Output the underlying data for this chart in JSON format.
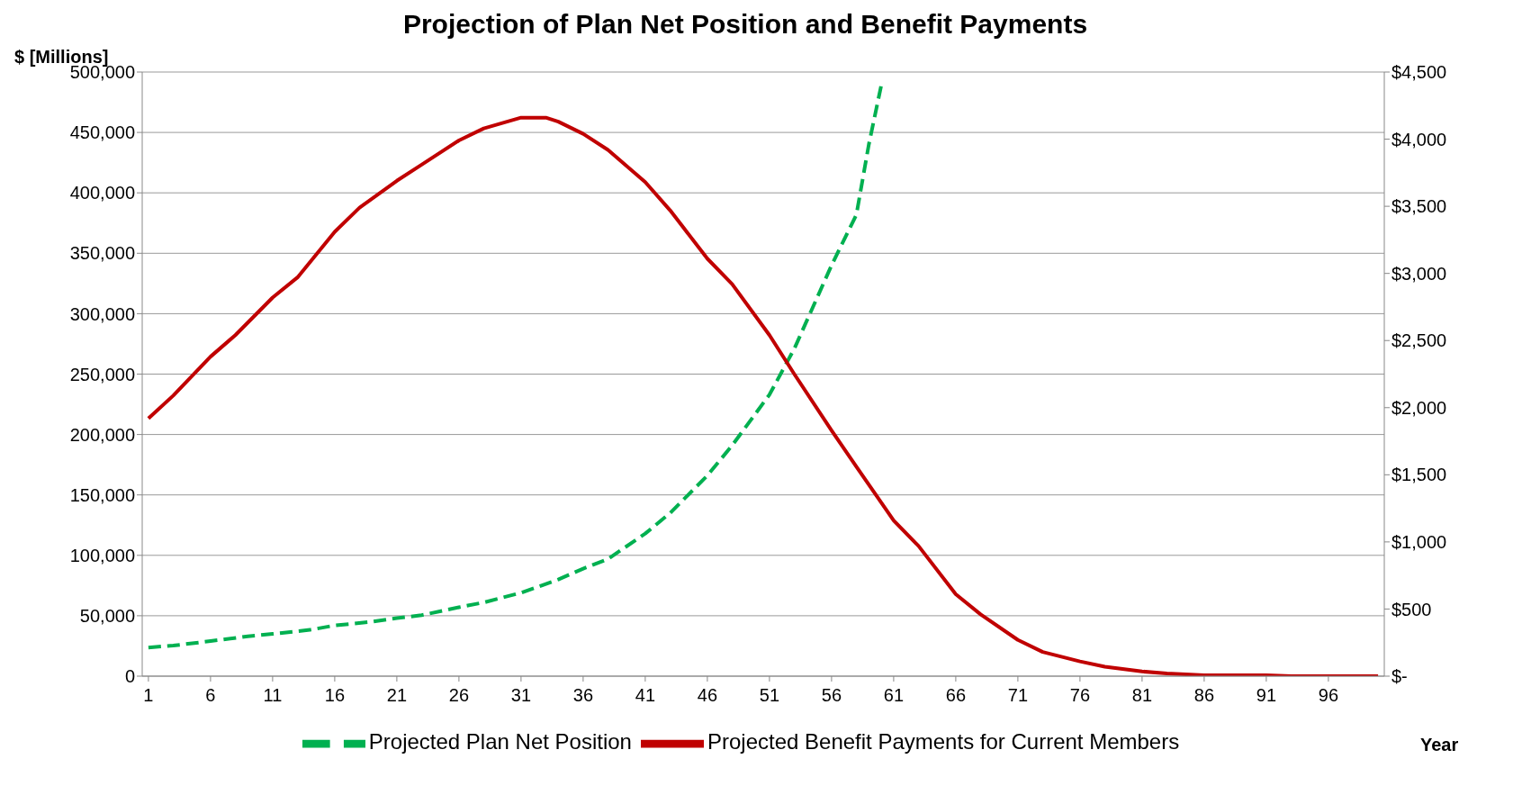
{
  "chart_data": {
    "type": "line",
    "title": "Projection of Plan Net Position and Benefit Payments",
    "ylabel": "$ [Millions]",
    "xlabel": "Year",
    "xlim": [
      0.5,
      100.5
    ],
    "xticks": [
      1,
      6,
      11,
      16,
      21,
      26,
      31,
      36,
      41,
      46,
      51,
      56,
      61,
      66,
      71,
      76,
      81,
      86,
      91,
      96
    ],
    "ylim": [
      0,
      500000
    ],
    "yticks": [
      0,
      {
        "value": 50000,
        "label": "50,000"
      },
      {
        "value": 100000,
        "label": "100,000"
      },
      {
        "value": 150000,
        "label": "150,000"
      },
      {
        "value": 200000,
        "label": "200,000"
      },
      {
        "value": 250000,
        "label": "250,000"
      },
      {
        "value": 300000,
        "label": "300,000"
      },
      {
        "value": 350000,
        "label": "350,000"
      },
      {
        "value": 400000,
        "label": "400,000"
      },
      {
        "value": 450000,
        "label": "450,000"
      },
      {
        "value": 500000,
        "label": "500,000"
      }
    ],
    "y2lim": [
      0,
      4500
    ],
    "y2ticks": [
      {
        "value": 0,
        "label": "$-"
      },
      {
        "value": 500,
        "label": "$500"
      },
      {
        "value": 1000,
        "label": "$1,000"
      },
      {
        "value": 1500,
        "label": "$1,500"
      },
      {
        "value": 2000,
        "label": "$2,000"
      },
      {
        "value": 2500,
        "label": "$2,500"
      },
      {
        "value": 3000,
        "label": "$3,000"
      },
      {
        "value": 3500,
        "label": "$3,500"
      },
      {
        "value": 4000,
        "label": "$4,000"
      },
      {
        "value": 4500,
        "label": "$4,500"
      }
    ],
    "grid": "y",
    "legend": "bottom",
    "marker": "none",
    "series": [
      {
        "name": "Projected Plan Net Position",
        "color": "#00b050",
        "line_style": "dashed",
        "x": [
          1,
          3,
          6,
          9,
          11,
          14,
          16,
          19,
          21,
          23,
          26,
          28,
          31,
          34,
          36,
          38,
          41,
          43,
          46,
          48,
          51,
          53,
          56,
          58,
          59,
          60
        ],
        "values": [
          23700,
          25300,
          29000,
          33000,
          35000,
          38300,
          42000,
          45000,
          48000,
          50500,
          57000,
          61000,
          69000,
          80000,
          89000,
          97000,
          118000,
          135000,
          166000,
          191000,
          233000,
          271000,
          340000,
          382000,
          440000,
          489000
        ]
      },
      {
        "name": "Projected Benefit Payments for Current Members",
        "color": "#c00000",
        "line_style": "solid",
        "axis": "y2",
        "x": [
          1,
          3,
          6,
          8,
          11,
          13,
          16,
          18,
          21,
          23,
          26,
          28,
          31,
          33,
          34,
          36,
          38,
          41,
          43,
          46,
          48,
          51,
          53,
          56,
          58,
          61,
          63,
          66,
          68,
          71,
          73,
          76,
          78,
          81,
          83,
          86,
          91,
          93,
          100
        ],
        "values": [
          1920,
          2090,
          2380,
          2540,
          2820,
          2970,
          3310,
          3490,
          3690,
          3810,
          3990,
          4080,
          4160,
          4160,
          4130,
          4040,
          3920,
          3680,
          3470,
          3110,
          2920,
          2540,
          2250,
          1830,
          1560,
          1160,
          970,
          610,
          460,
          270,
          180,
          110,
          70,
          35,
          20,
          7,
          7,
          0,
          0
        ]
      }
    ]
  }
}
